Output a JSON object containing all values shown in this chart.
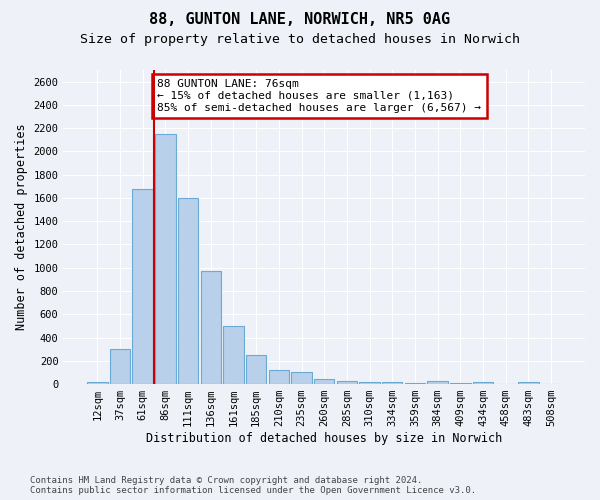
{
  "title_line1": "88, GUNTON LANE, NORWICH, NR5 0AG",
  "title_line2": "Size of property relative to detached houses in Norwich",
  "xlabel": "Distribution of detached houses by size in Norwich",
  "ylabel": "Number of detached properties",
  "categories": [
    "12sqm",
    "37sqm",
    "61sqm",
    "86sqm",
    "111sqm",
    "136sqm",
    "161sqm",
    "185sqm",
    "210sqm",
    "235sqm",
    "260sqm",
    "285sqm",
    "310sqm",
    "334sqm",
    "359sqm",
    "384sqm",
    "409sqm",
    "434sqm",
    "458sqm",
    "483sqm",
    "508sqm"
  ],
  "values": [
    20,
    300,
    1680,
    2150,
    1600,
    970,
    500,
    250,
    125,
    100,
    45,
    30,
    20,
    15,
    10,
    25,
    10,
    20,
    5,
    20,
    5
  ],
  "bar_color": "#b8d0ea",
  "bar_edge_color": "#6aaad4",
  "vline_x_index": 3,
  "vline_color": "#cc0000",
  "annotation_text": "88 GUNTON LANE: 76sqm\n← 15% of detached houses are smaller (1,163)\n85% of semi-detached houses are larger (6,567) →",
  "annotation_box_color": "#ffffff",
  "annotation_box_edge": "#cc0000",
  "ylim": [
    0,
    2700
  ],
  "yticks": [
    0,
    200,
    400,
    600,
    800,
    1000,
    1200,
    1400,
    1600,
    1800,
    2000,
    2200,
    2400,
    2600
  ],
  "footer_line1": "Contains HM Land Registry data © Crown copyright and database right 2024.",
  "footer_line2": "Contains public sector information licensed under the Open Government Licence v3.0.",
  "background_color": "#eef2f8",
  "plot_bg_color": "#eef2f8",
  "grid_color": "#ffffff",
  "title_fontsize": 11,
  "subtitle_fontsize": 9.5,
  "axis_label_fontsize": 8.5,
  "tick_fontsize": 7.5,
  "annotation_fontsize": 8,
  "footer_fontsize": 6.5
}
